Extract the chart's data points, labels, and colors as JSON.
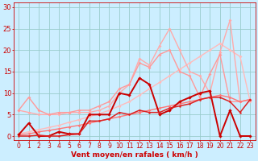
{
  "background_color": "#cceeff",
  "grid_color": "#99cccc",
  "x_label": "Vent moyen/en rafales ( km/h )",
  "x_ticks": [
    0,
    1,
    2,
    3,
    4,
    5,
    6,
    7,
    8,
    9,
    10,
    11,
    12,
    13,
    14,
    15,
    16,
    17,
    18,
    19,
    20,
    21,
    22,
    23
  ],
  "y_ticks": [
    0,
    5,
    10,
    15,
    20,
    25,
    30
  ],
  "ylim": [
    -1,
    31
  ],
  "xlim": [
    -0.5,
    23.5
  ],
  "series": [
    {
      "x": [
        0,
        1,
        2,
        3,
        4,
        5,
        6,
        7,
        8,
        9,
        10,
        11,
        12,
        13,
        14,
        15,
        16,
        17,
        18,
        19,
        20,
        21,
        22,
        23
      ],
      "y": [
        0.5,
        1.0,
        1.5,
        2.0,
        2.5,
        3.2,
        3.8,
        4.5,
        5.2,
        6.0,
        7.0,
        8.0,
        9.5,
        11.0,
        12.5,
        14.0,
        15.5,
        17.0,
        18.5,
        20.0,
        21.5,
        20.0,
        18.5,
        8.0
      ],
      "color": "#ffbbbb",
      "lw": 1.0,
      "marker": "D",
      "ms": 2.0
    },
    {
      "x": [
        0,
        1,
        2,
        3,
        4,
        5,
        6,
        7,
        8,
        9,
        10,
        11,
        12,
        13,
        14,
        15,
        16,
        17,
        18,
        19,
        20,
        21,
        22,
        23
      ],
      "y": [
        6.0,
        5.5,
        5.0,
        5.0,
        5.0,
        5.5,
        5.5,
        5.5,
        6.0,
        7.0,
        10.0,
        12.0,
        18.0,
        16.5,
        21.0,
        25.0,
        20.0,
        15.0,
        14.0,
        10.0,
        19.5,
        27.0,
        8.0,
        8.5
      ],
      "color": "#ffaaaa",
      "lw": 1.0,
      "marker": "D",
      "ms": 2.0
    },
    {
      "x": [
        0,
        1,
        2,
        3,
        4,
        5,
        6,
        7,
        8,
        9,
        10,
        11,
        12,
        13,
        14,
        15,
        16,
        17,
        18,
        19,
        20,
        21,
        22,
        23
      ],
      "y": [
        6.0,
        9.0,
        6.0,
        5.0,
        5.5,
        5.5,
        6.0,
        6.0,
        7.0,
        8.0,
        11.0,
        12.0,
        17.0,
        16.0,
        19.0,
        20.0,
        15.0,
        14.0,
        9.0,
        14.5,
        19.0,
        8.0,
        8.0,
        8.5
      ],
      "color": "#ff9999",
      "lw": 1.0,
      "marker": "D",
      "ms": 2.0
    },
    {
      "x": [
        0,
        1,
        2,
        3,
        4,
        5,
        6,
        7,
        8,
        9,
        10,
        11,
        12,
        13,
        14,
        15,
        16,
        17,
        18,
        19,
        20,
        21,
        22,
        23
      ],
      "y": [
        0.3,
        0.5,
        1.0,
        1.3,
        1.7,
        2.1,
        2.5,
        3.0,
        3.5,
        4.0,
        4.5,
        5.0,
        5.5,
        6.0,
        6.5,
        7.0,
        7.5,
        8.0,
        8.5,
        9.0,
        9.5,
        9.0,
        8.0,
        8.5
      ],
      "color": "#ff7777",
      "lw": 1.0,
      "marker": "D",
      "ms": 1.8
    },
    {
      "x": [
        0,
        1,
        2,
        3,
        4,
        5,
        6,
        7,
        8,
        9,
        10,
        11,
        12,
        13,
        14,
        15,
        16,
        17,
        18,
        19,
        20,
        21,
        22,
        23
      ],
      "y": [
        0.3,
        3.0,
        0.0,
        0.0,
        1.0,
        0.5,
        0.5,
        5.0,
        5.0,
        5.0,
        10.0,
        9.5,
        13.5,
        12.0,
        5.0,
        6.0,
        8.0,
        9.0,
        10.0,
        10.5,
        0.0,
        6.0,
        0.0,
        0.0
      ],
      "color": "#cc0000",
      "lw": 1.4,
      "marker": "D",
      "ms": 2.2
    },
    {
      "x": [
        0,
        1,
        2,
        3,
        4,
        5,
        6,
        7,
        8,
        9,
        10,
        11,
        12,
        13,
        14,
        15,
        16,
        17,
        18,
        19,
        20,
        21,
        22,
        23
      ],
      "y": [
        0.0,
        0.0,
        0.2,
        0.0,
        0.0,
        0.3,
        0.5,
        3.5,
        3.5,
        4.0,
        5.5,
        5.0,
        6.0,
        5.5,
        5.5,
        6.5,
        7.0,
        7.5,
        8.5,
        9.0,
        9.0,
        8.0,
        5.5,
        8.5
      ],
      "color": "#dd2222",
      "lw": 1.1,
      "marker": "o",
      "ms": 1.8
    }
  ],
  "axis_label_color": "#cc0000",
  "tick_color": "#cc0000",
  "label_fontsize": 6.5,
  "tick_fontsize": 5.5
}
